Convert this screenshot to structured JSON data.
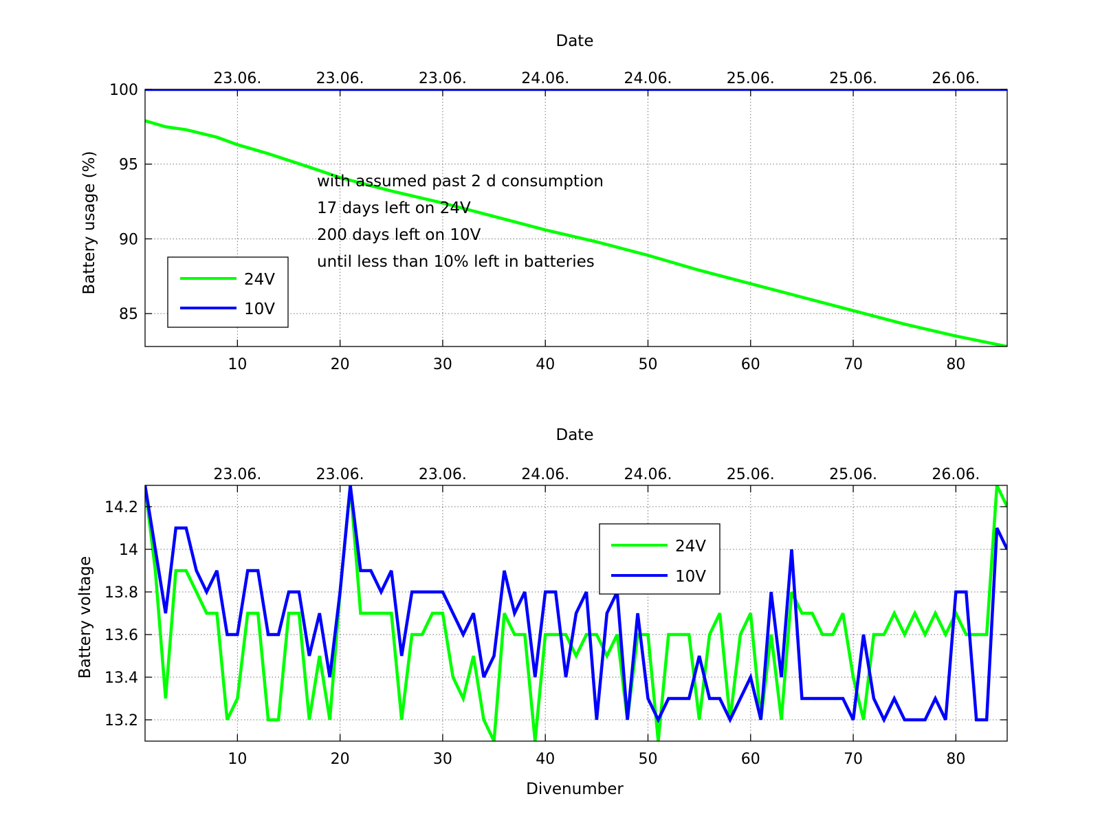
{
  "chart_data": [
    {
      "type": "line",
      "top_title": "Date",
      "top_tick_labels": [
        "23.06.",
        "23.06.",
        "23.06.",
        "24.06.",
        "24.06.",
        "25.06.",
        "25.06.",
        "26.06."
      ],
      "xlabel": "",
      "ylabel": "Battery usage (%)",
      "xlim": [
        1,
        85
      ],
      "ylim": [
        82.8,
        100
      ],
      "x_ticks": [
        10,
        20,
        30,
        40,
        50,
        60,
        70,
        80
      ],
      "y_ticks": [
        85,
        90,
        95,
        100
      ],
      "grid": true,
      "legend_position": "lower-left",
      "annotation": [
        "with assumed past 2 d consumption",
        "17 days left on 24V",
        "200 days left on 10V",
        "until less than 10% left in batteries"
      ],
      "series": [
        {
          "name": "24V",
          "color": "#00ff00",
          "x": [
            1,
            3,
            5,
            8,
            10,
            13,
            17,
            20,
            25,
            30,
            35,
            40,
            45,
            50,
            55,
            60,
            65,
            70,
            75,
            80,
            85
          ],
          "values": [
            97.9,
            97.5,
            97.3,
            96.8,
            96.3,
            95.7,
            94.8,
            94.1,
            93.2,
            92.4,
            91.5,
            90.6,
            89.8,
            88.9,
            87.9,
            87.0,
            86.1,
            85.2,
            84.3,
            83.5,
            82.8
          ]
        },
        {
          "name": "10V",
          "color": "#0000ff",
          "x": [
            1,
            85
          ],
          "values": [
            100,
            100
          ]
        }
      ]
    },
    {
      "type": "line",
      "top_title": "Date",
      "top_tick_labels": [
        "23.06.",
        "23.06.",
        "23.06.",
        "24.06.",
        "24.06.",
        "25.06.",
        "25.06.",
        "26.06."
      ],
      "xlabel": "Divenumber",
      "ylabel": "Battery voltage",
      "xlim": [
        1,
        85
      ],
      "ylim": [
        13.1,
        14.3
      ],
      "x_ticks": [
        10,
        20,
        30,
        40,
        50,
        60,
        70,
        80
      ],
      "y_ticks": [
        13.2,
        13.4,
        13.6,
        13.8,
        14,
        14.2
      ],
      "y_tick_labels": [
        "13.2",
        "13.4",
        "13.6",
        "13.8",
        "14",
        "14.2"
      ],
      "grid": true,
      "legend_position": "upper-center",
      "series": [
        {
          "name": "24V",
          "color": "#00ff00",
          "x": [
            1,
            2,
            3,
            4,
            5,
            6,
            7,
            8,
            9,
            10,
            11,
            12,
            13,
            14,
            15,
            16,
            17,
            18,
            19,
            20,
            21,
            22,
            23,
            24,
            25,
            26,
            27,
            28,
            29,
            30,
            31,
            32,
            33,
            34,
            35,
            36,
            37,
            38,
            39,
            40,
            41,
            42,
            43,
            44,
            45,
            46,
            47,
            48,
            49,
            50,
            51,
            52,
            53,
            54,
            55,
            56,
            57,
            58,
            59,
            60,
            61,
            62,
            63,
            64,
            65,
            66,
            67,
            68,
            69,
            70,
            71,
            72,
            73,
            74,
            75,
            76,
            77,
            78,
            79,
            80,
            81,
            82,
            83,
            84,
            85
          ],
          "values": [
            14.3,
            13.9,
            13.3,
            13.9,
            13.9,
            13.8,
            13.7,
            13.7,
            13.2,
            13.3,
            13.7,
            13.7,
            13.2,
            13.2,
            13.7,
            13.7,
            13.2,
            13.5,
            13.2,
            13.8,
            14.3,
            13.7,
            13.7,
            13.7,
            13.7,
            13.2,
            13.6,
            13.6,
            13.7,
            13.7,
            13.4,
            13.3,
            13.5,
            13.2,
            13.1,
            13.7,
            13.6,
            13.6,
            13.1,
            13.6,
            13.6,
            13.6,
            13.5,
            13.6,
            13.6,
            13.5,
            13.6,
            13.2,
            13.6,
            13.6,
            13.1,
            13.6,
            13.6,
            13.6,
            13.2,
            13.6,
            13.7,
            13.2,
            13.6,
            13.7,
            13.2,
            13.6,
            13.2,
            13.8,
            13.7,
            13.7,
            13.6,
            13.6,
            13.7,
            13.4,
            13.2,
            13.6,
            13.6,
            13.7,
            13.6,
            13.7,
            13.6,
            13.7,
            13.6,
            13.7,
            13.6,
            13.6,
            13.6,
            14.3,
            14.2
          ]
        },
        {
          "name": "10V",
          "color": "#0000ff",
          "x": [
            1,
            2,
            3,
            4,
            5,
            6,
            7,
            8,
            9,
            10,
            11,
            12,
            13,
            14,
            15,
            16,
            17,
            18,
            19,
            20,
            21,
            22,
            23,
            24,
            25,
            26,
            27,
            28,
            29,
            30,
            31,
            32,
            33,
            34,
            35,
            36,
            37,
            38,
            39,
            40,
            41,
            42,
            43,
            44,
            45,
            46,
            47,
            48,
            49,
            50,
            51,
            52,
            53,
            54,
            55,
            56,
            57,
            58,
            59,
            60,
            61,
            62,
            63,
            64,
            65,
            66,
            67,
            68,
            69,
            70,
            71,
            72,
            73,
            74,
            75,
            76,
            77,
            78,
            79,
            80,
            81,
            82,
            83,
            84,
            85
          ],
          "values": [
            14.3,
            14.0,
            13.7,
            14.1,
            14.1,
            13.9,
            13.8,
            13.9,
            13.6,
            13.6,
            13.9,
            13.9,
            13.6,
            13.6,
            13.8,
            13.8,
            13.5,
            13.7,
            13.4,
            13.8,
            14.3,
            13.9,
            13.9,
            13.8,
            13.9,
            13.5,
            13.8,
            13.8,
            13.8,
            13.8,
            13.7,
            13.6,
            13.7,
            13.4,
            13.5,
            13.9,
            13.7,
            13.8,
            13.4,
            13.8,
            13.8,
            13.4,
            13.7,
            13.8,
            13.2,
            13.7,
            13.8,
            13.2,
            13.7,
            13.3,
            13.2,
            13.3,
            13.3,
            13.3,
            13.5,
            13.3,
            13.3,
            13.2,
            13.3,
            13.4,
            13.2,
            13.8,
            13.4,
            14.0,
            13.3,
            13.3,
            13.3,
            13.3,
            13.3,
            13.2,
            13.6,
            13.3,
            13.2,
            13.3,
            13.2,
            13.2,
            13.2,
            13.3,
            13.2,
            13.8,
            13.8,
            13.2,
            13.2,
            14.1,
            14.0
          ]
        }
      ]
    }
  ]
}
